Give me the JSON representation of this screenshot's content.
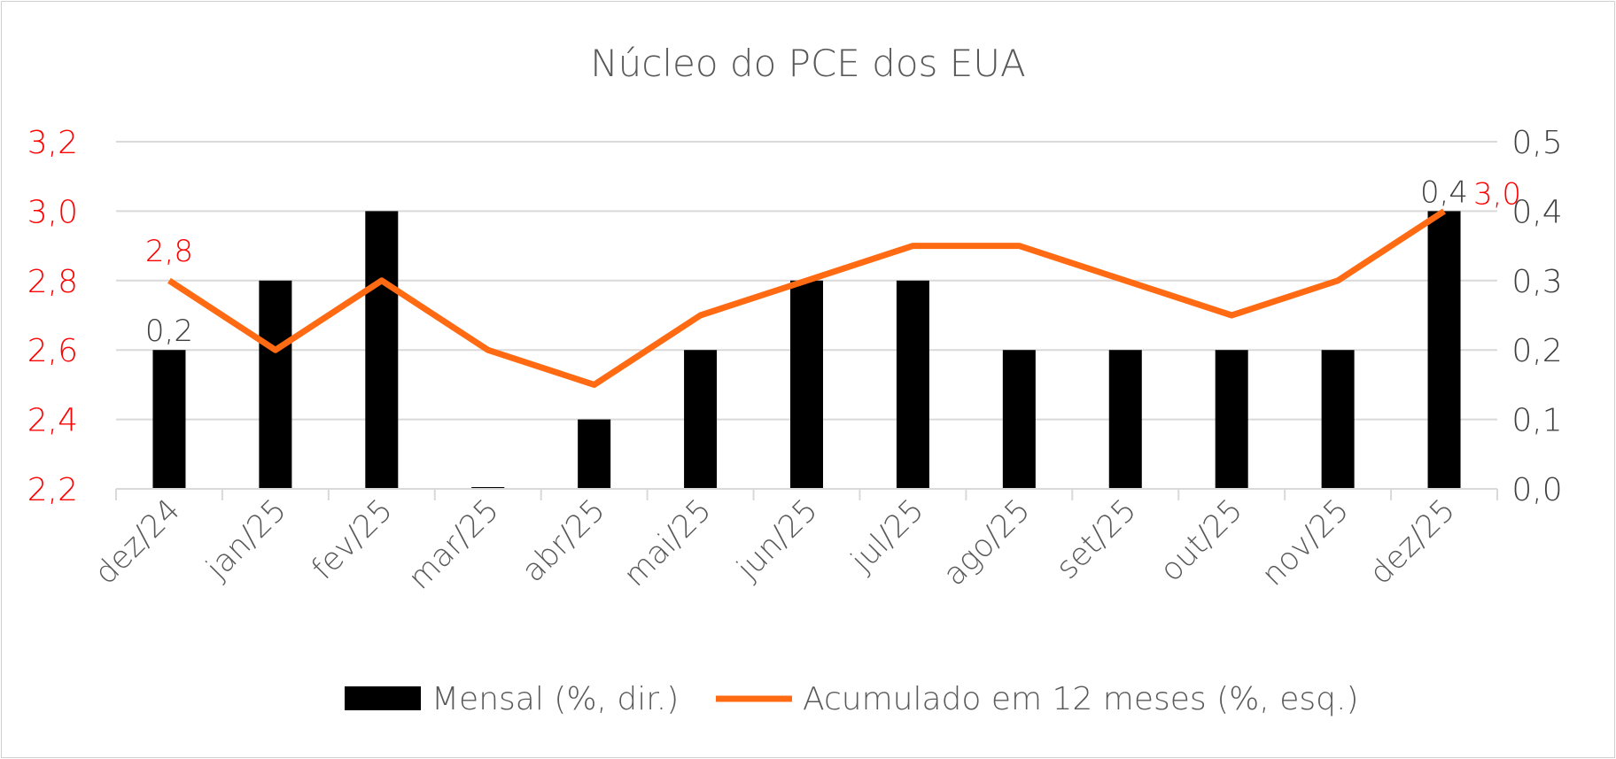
{
  "chart_data": {
    "type": "bar+line",
    "title": "Núcleo do PCE dos EUA",
    "categories": [
      "dez/24",
      "jan/25",
      "fev/25",
      "mar/25",
      "abr/25",
      "mai/25",
      "jun/25",
      "jul/25",
      "ago/25",
      "set/25",
      "out/25",
      "nov/25",
      "dez/25"
    ],
    "series": [
      {
        "name": "Mensal (%, dir.)",
        "type": "bar",
        "axis": "right",
        "color": "#000000",
        "values": [
          0.2,
          0.3,
          0.4,
          0.0,
          0.1,
          0.2,
          0.3,
          0.3,
          0.2,
          0.2,
          0.2,
          0.2,
          0.4
        ],
        "data_labels": {
          "0": "0,2",
          "12": "0,4"
        }
      },
      {
        "name": "Acumulado em 12 meses (%, esq.)",
        "type": "line",
        "axis": "left",
        "color": "#FF6A13",
        "values": [
          2.8,
          2.6,
          2.8,
          2.6,
          2.5,
          2.7,
          2.8,
          2.9,
          2.9,
          2.8,
          2.7,
          2.8,
          3.0
        ],
        "data_labels": {
          "0": "2,8",
          "12": "3,0"
        }
      }
    ],
    "left_axis": {
      "range": [
        2.2,
        3.2
      ],
      "ticks": [
        "2,2",
        "2,4",
        "2,6",
        "2,8",
        "3,0",
        "3,2"
      ],
      "color": "#FF0000"
    },
    "right_axis": {
      "range": [
        0.0,
        0.5
      ],
      "ticks": [
        "0,0",
        "0,1",
        "0,2",
        "0,3",
        "0,4",
        "0,5"
      ],
      "color": "#404040"
    },
    "grid": true,
    "legend": "bottom"
  }
}
